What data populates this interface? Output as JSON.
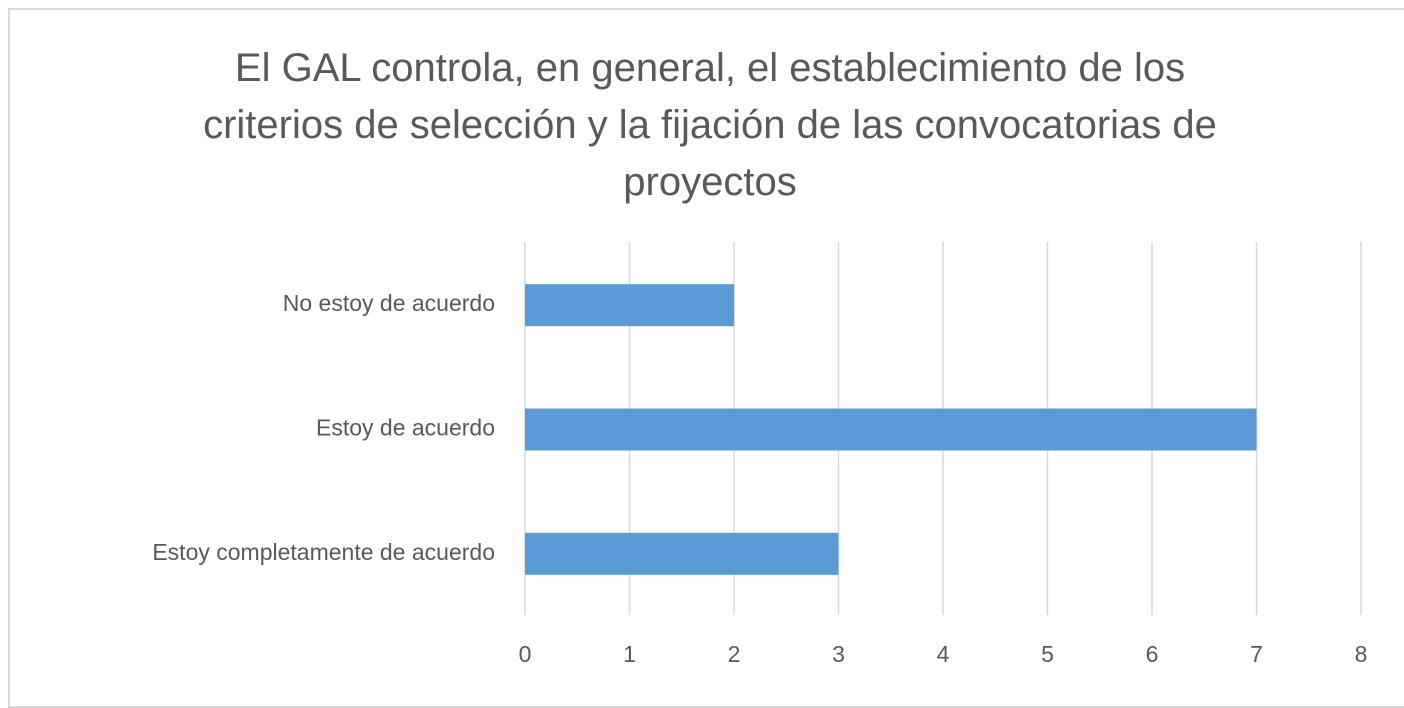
{
  "chart_data": {
    "type": "bar",
    "orientation": "horizontal",
    "title": "El GAL controla, en general, el establecimiento de los criterios de selección y la fijación de las convocatorias de proyectos",
    "categories": [
      "No estoy de acuerdo",
      "Estoy de acuerdo",
      "Estoy completamente de acuerdo"
    ],
    "values": [
      2,
      7,
      3
    ],
    "color": "#5b9bd5",
    "xlim": [
      0,
      8
    ],
    "xticks": [
      0,
      1,
      2,
      3,
      4,
      5,
      6,
      7,
      8
    ],
    "grid": true
  }
}
